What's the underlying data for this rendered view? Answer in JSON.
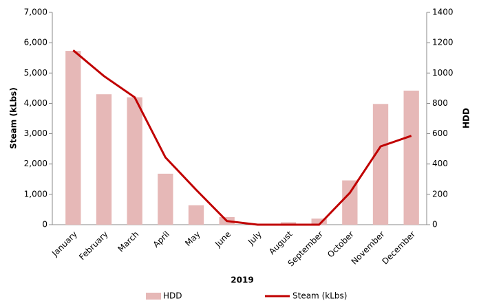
{
  "chart_data": {
    "type": "bar-line",
    "xlabel": "2019",
    "ylabel": "Steam (kLbs)",
    "y2label": "HDD",
    "categories": [
      "January",
      "February",
      "March",
      "April",
      "May",
      "June",
      "July",
      "August",
      "September",
      "October",
      "November",
      "December"
    ],
    "series": [
      {
        "name": "HDD",
        "type": "bar",
        "axis": "y2",
        "color": "#e6b8b7",
        "values": [
          1146,
          860,
          840,
          336,
          128,
          50,
          0,
          16,
          40,
          292,
          796,
          884
        ]
      },
      {
        "name": "Steam (kLbs)",
        "type": "line",
        "axis": "y",
        "color": "#c00000",
        "values": [
          5750,
          4900,
          4200,
          2220,
          1150,
          120,
          0,
          0,
          0,
          1050,
          2580,
          2930
        ]
      }
    ],
    "ylim": [
      0,
      7000
    ],
    "yticks": [
      0,
      {
        "value": 1000,
        "label": "1,000"
      },
      {
        "value": 2000,
        "label": "2,000"
      },
      {
        "value": 3000,
        "label": "3,000"
      },
      {
        "value": 4000,
        "label": "4,000"
      },
      {
        "value": 5000,
        "label": "5,000"
      },
      {
        "value": 6000,
        "label": "6,000"
      },
      {
        "value": 7000,
        "label": "7,000"
      }
    ],
    "y2lim": [
      0,
      1400
    ],
    "y2ticks": [
      0,
      200,
      400,
      600,
      800,
      1000,
      1200,
      1400
    ],
    "legend": "bottom"
  }
}
